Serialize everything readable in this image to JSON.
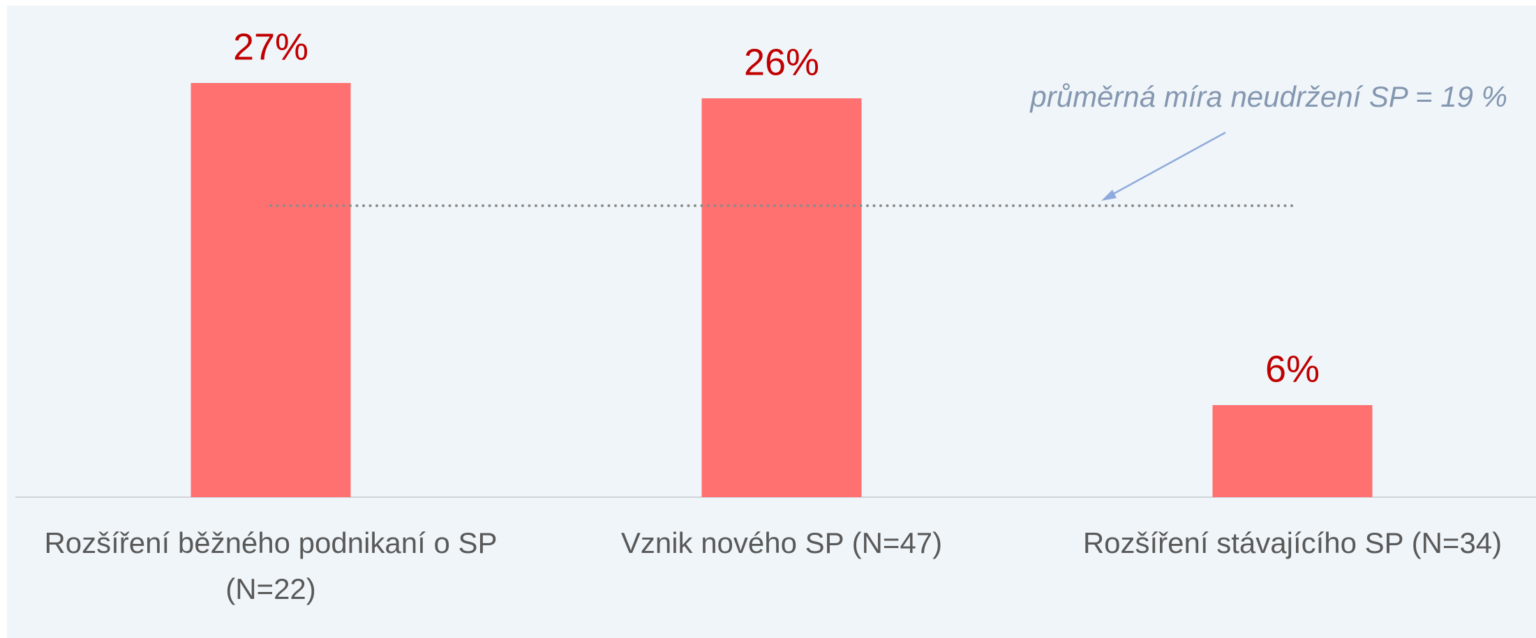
{
  "chart_data": {
    "type": "bar",
    "categories": [
      "Rozšíření běžného podnikaní o SP (N=22)",
      "Vznik nového SP (N=47)",
      "Rozšíření stávajícího SP (N=34)"
    ],
    "values": [
      27,
      26,
      6
    ],
    "value_labels": [
      "27%",
      "26%",
      "6%"
    ],
    "color": "#ff7070",
    "reference_line": {
      "value": 19,
      "label": "průměrná míra neudržení SP = 19 %"
    },
    "grid": false
  }
}
